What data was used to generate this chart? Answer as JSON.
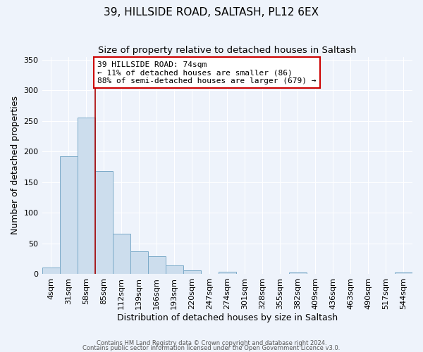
{
  "title": "39, HILLSIDE ROAD, SALTASH, PL12 6EX",
  "subtitle": "Size of property relative to detached houses in Saltash",
  "xlabel": "Distribution of detached houses by size in Saltash",
  "ylabel": "Number of detached properties",
  "bar_labels": [
    "4sqm",
    "31sqm",
    "58sqm",
    "85sqm",
    "112sqm",
    "139sqm",
    "166sqm",
    "193sqm",
    "220sqm",
    "247sqm",
    "274sqm",
    "301sqm",
    "328sqm",
    "355sqm",
    "382sqm",
    "409sqm",
    "436sqm",
    "463sqm",
    "490sqm",
    "517sqm",
    "544sqm"
  ],
  "bar_values": [
    10,
    192,
    255,
    168,
    66,
    37,
    29,
    14,
    6,
    0,
    3,
    0,
    0,
    0,
    2,
    0,
    0,
    0,
    0,
    0,
    2
  ],
  "bar_color": "#ccdded",
  "bar_edge_color": "#7aaac8",
  "vline_color": "#aa0000",
  "annotation_text": "39 HILLSIDE ROAD: 74sqm\n← 11% of detached houses are smaller (86)\n88% of semi-detached houses are larger (679) →",
  "annotation_box_color": "#ffffff",
  "annotation_box_edge": "#cc0000",
  "ylim": [
    0,
    355
  ],
  "yticks": [
    0,
    50,
    100,
    150,
    200,
    250,
    300,
    350
  ],
  "title_fontsize": 11,
  "subtitle_fontsize": 9.5,
  "axis_fontsize": 9,
  "tick_fontsize": 8,
  "annot_fontsize": 8,
  "footer_line1": "Contains HM Land Registry data © Crown copyright and database right 2024.",
  "footer_line2": "Contains public sector information licensed under the Open Government Licence v3.0.",
  "background_color": "#eef3fb",
  "grid_color": "#ffffff"
}
